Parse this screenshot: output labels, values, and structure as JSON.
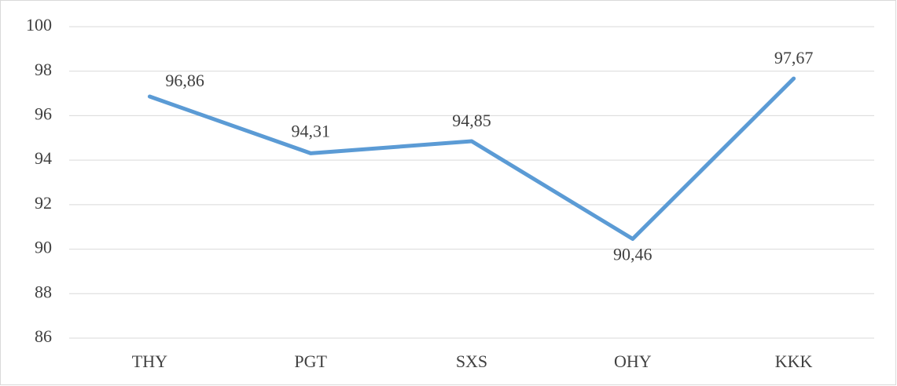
{
  "chart_data": {
    "type": "line",
    "categories": [
      "THY",
      "PGT",
      "SXS",
      "OHY",
      "KKK"
    ],
    "series": [
      {
        "name": null,
        "color": "#5b9bd5",
        "values": [
          96.86,
          94.31,
          94.85,
          90.46,
          97.67
        ],
        "value_labels": [
          "96,86",
          "94,31",
          "94,85",
          "90,46",
          "97,67"
        ]
      }
    ],
    "ylim": [
      86,
      100
    ],
    "yticks": [
      86,
      88,
      90,
      92,
      94,
      96,
      98,
      100
    ],
    "grid": true
  }
}
